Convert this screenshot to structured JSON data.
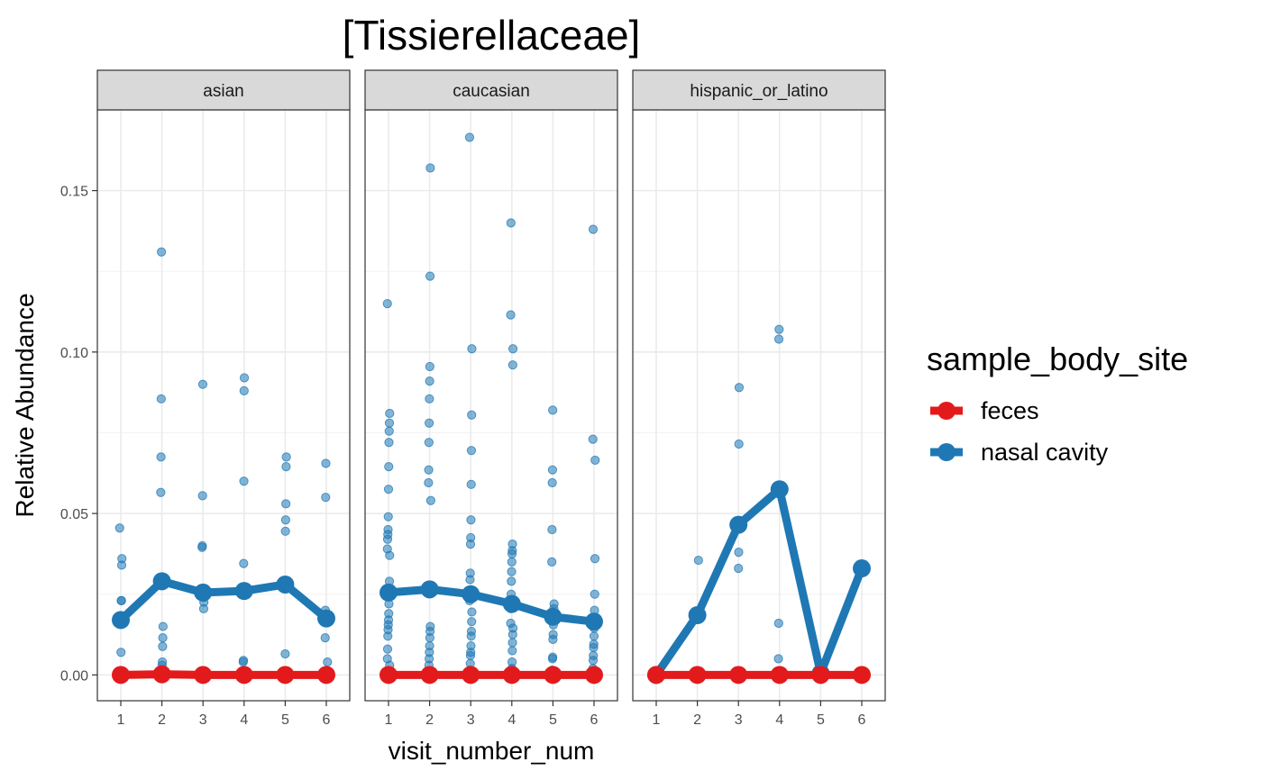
{
  "chart_data": {
    "type": "line",
    "title": "[Tissierellaceae]",
    "xlabel": "visit_number_num",
    "ylabel": "Relative Abundance",
    "x": [
      1,
      2,
      3,
      4,
      5,
      6
    ],
    "x_tick_labels": [
      "1",
      "2",
      "3",
      "4",
      "5",
      "6"
    ],
    "ylim": [
      -0.008,
      0.175
    ],
    "y_ticks": [
      0.0,
      0.05,
      0.1,
      0.15
    ],
    "y_tick_labels": [
      "0.00",
      "0.05",
      "0.10",
      "0.15"
    ],
    "grid": true,
    "legend": {
      "title": "sample_body_site",
      "position": "right",
      "entries": [
        "feces",
        "nasal cavity"
      ]
    },
    "colors": {
      "feces": "#e31a1c",
      "nasal cavity": "#1f78b4"
    },
    "panels": [
      {
        "label": "asian",
        "series": [
          {
            "name": "feces",
            "mean_values": [
              0.0,
              0.0002,
              0.0,
              0.0,
              0.0,
              0.0
            ]
          },
          {
            "name": "nasal cavity",
            "mean_values": [
              0.017,
              0.029,
              0.0255,
              0.026,
              0.028,
              0.0175
            ]
          }
        ],
        "points": [
          [
            1,
            0.0455
          ],
          [
            1,
            0.036
          ],
          [
            1,
            0.034
          ],
          [
            1,
            0.023
          ],
          [
            1,
            0.023
          ],
          [
            1,
            0.007
          ],
          [
            1,
            0.0
          ],
          [
            1,
            0.0
          ],
          [
            2,
            0.131
          ],
          [
            2,
            0.0855
          ],
          [
            2,
            0.0675
          ],
          [
            2,
            0.0565
          ],
          [
            2,
            0.015
          ],
          [
            2,
            0.0115
          ],
          [
            2,
            0.0088
          ],
          [
            2,
            0.004
          ],
          [
            2,
            0.003
          ],
          [
            2,
            0.0
          ],
          [
            3,
            0.09
          ],
          [
            3,
            0.0555
          ],
          [
            3,
            0.04
          ],
          [
            3,
            0.0395
          ],
          [
            3,
            0.026
          ],
          [
            3,
            0.024
          ],
          [
            3,
            0.0225
          ],
          [
            3,
            0.0205
          ],
          [
            3,
            0.0
          ],
          [
            4,
            0.092
          ],
          [
            4,
            0.088
          ],
          [
            4,
            0.06
          ],
          [
            4,
            0.0345
          ],
          [
            4,
            0.0045
          ],
          [
            4,
            0.004
          ],
          [
            4,
            0.0
          ],
          [
            5,
            0.0675
          ],
          [
            5,
            0.0645
          ],
          [
            5,
            0.053
          ],
          [
            5,
            0.048
          ],
          [
            5,
            0.0445
          ],
          [
            5,
            0.0065
          ],
          [
            5,
            0.0
          ],
          [
            6,
            0.0655
          ],
          [
            6,
            0.055
          ],
          [
            6,
            0.02
          ],
          [
            6,
            0.0115
          ],
          [
            6,
            0.004
          ],
          [
            6,
            0.0
          ]
        ]
      },
      {
        "label": "caucasian",
        "series": [
          {
            "name": "feces",
            "mean_values": [
              0.0,
              0.0,
              0.0,
              0.0,
              0.0,
              0.0
            ]
          },
          {
            "name": "nasal cavity",
            "mean_values": [
              0.0255,
              0.0265,
              0.025,
              0.022,
              0.018,
              0.0165
            ]
          }
        ],
        "points": [
          [
            1,
            0.115
          ],
          [
            1,
            0.081
          ],
          [
            1,
            0.078
          ],
          [
            1,
            0.0755
          ],
          [
            1,
            0.072
          ],
          [
            1,
            0.0645
          ],
          [
            1,
            0.0575
          ],
          [
            1,
            0.049
          ],
          [
            1,
            0.045
          ],
          [
            1,
            0.0435
          ],
          [
            1,
            0.042
          ],
          [
            1,
            0.039
          ],
          [
            1,
            0.037
          ],
          [
            1,
            0.029
          ],
          [
            1,
            0.025
          ],
          [
            1,
            0.022
          ],
          [
            1,
            0.019
          ],
          [
            1,
            0.017
          ],
          [
            1,
            0.0155
          ],
          [
            1,
            0.014
          ],
          [
            1,
            0.012
          ],
          [
            1,
            0.008
          ],
          [
            1,
            0.005
          ],
          [
            1,
            0.003
          ],
          [
            1,
            0.001
          ],
          [
            2,
            0.157
          ],
          [
            2,
            0.1235
          ],
          [
            2,
            0.0955
          ],
          [
            2,
            0.091
          ],
          [
            2,
            0.0855
          ],
          [
            2,
            0.078
          ],
          [
            2,
            0.072
          ],
          [
            2,
            0.0635
          ],
          [
            2,
            0.0595
          ],
          [
            2,
            0.054
          ],
          [
            2,
            0.0275
          ],
          [
            2,
            0.015
          ],
          [
            2,
            0.0135
          ],
          [
            2,
            0.0115
          ],
          [
            2,
            0.009
          ],
          [
            2,
            0.007
          ],
          [
            2,
            0.005
          ],
          [
            2,
            0.003
          ],
          [
            2,
            0.001
          ],
          [
            3,
            0.1665
          ],
          [
            3,
            0.101
          ],
          [
            3,
            0.0805
          ],
          [
            3,
            0.0695
          ],
          [
            3,
            0.059
          ],
          [
            3,
            0.048
          ],
          [
            3,
            0.0425
          ],
          [
            3,
            0.0405
          ],
          [
            3,
            0.0315
          ],
          [
            3,
            0.0295
          ],
          [
            3,
            0.0255
          ],
          [
            3,
            0.023
          ],
          [
            3,
            0.0195
          ],
          [
            3,
            0.0165
          ],
          [
            3,
            0.0135
          ],
          [
            3,
            0.012
          ],
          [
            3,
            0.009
          ],
          [
            3,
            0.007
          ],
          [
            3,
            0.006
          ],
          [
            3,
            0.0035
          ],
          [
            3,
            0.0015
          ],
          [
            4,
            0.14
          ],
          [
            4,
            0.1115
          ],
          [
            4,
            0.101
          ],
          [
            4,
            0.096
          ],
          [
            4,
            0.0405
          ],
          [
            4,
            0.0385
          ],
          [
            4,
            0.0375
          ],
          [
            4,
            0.035
          ],
          [
            4,
            0.032
          ],
          [
            4,
            0.029
          ],
          [
            4,
            0.025
          ],
          [
            4,
            0.0205
          ],
          [
            4,
            0.016
          ],
          [
            4,
            0.0145
          ],
          [
            4,
            0.0125
          ],
          [
            4,
            0.01
          ],
          [
            4,
            0.0075
          ],
          [
            4,
            0.004
          ],
          [
            4,
            0.002
          ],
          [
            5,
            0.082
          ],
          [
            5,
            0.0635
          ],
          [
            5,
            0.0595
          ],
          [
            5,
            0.045
          ],
          [
            5,
            0.035
          ],
          [
            5,
            0.022
          ],
          [
            5,
            0.0205
          ],
          [
            5,
            0.0185
          ],
          [
            5,
            0.0155
          ],
          [
            5,
            0.0125
          ],
          [
            5,
            0.011
          ],
          [
            5,
            0.0055
          ],
          [
            5,
            0.005
          ],
          [
            5,
            0.0015
          ],
          [
            6,
            0.138
          ],
          [
            6,
            0.073
          ],
          [
            6,
            0.0665
          ],
          [
            6,
            0.036
          ],
          [
            6,
            0.025
          ],
          [
            6,
            0.02
          ],
          [
            6,
            0.0145
          ],
          [
            6,
            0.012
          ],
          [
            6,
            0.0095
          ],
          [
            6,
            0.0085
          ],
          [
            6,
            0.006
          ],
          [
            6,
            0.0045
          ],
          [
            6,
            0.002
          ]
        ]
      },
      {
        "label": "hispanic_or_latino",
        "series": [
          {
            "name": "feces",
            "mean_values": [
              0.0,
              0.0,
              0.0,
              0.0,
              0.0,
              0.0
            ]
          },
          {
            "name": "nasal cavity",
            "mean_values": [
              0.0,
              0.0185,
              0.0465,
              0.0575,
              0.0005,
              0.033
            ]
          }
        ],
        "points": [
          [
            1,
            0.0
          ],
          [
            2,
            0.0355
          ],
          [
            2,
            0.0
          ],
          [
            3,
            0.089
          ],
          [
            3,
            0.0715
          ],
          [
            3,
            0.038
          ],
          [
            3,
            0.033
          ],
          [
            3,
            0.0
          ],
          [
            4,
            0.107
          ],
          [
            4,
            0.104
          ],
          [
            4,
            0.016
          ],
          [
            4,
            0.005
          ],
          [
            4,
            0.0
          ],
          [
            5,
            0.0
          ],
          [
            6,
            0.033
          ],
          [
            6,
            0.0
          ]
        ]
      }
    ]
  }
}
